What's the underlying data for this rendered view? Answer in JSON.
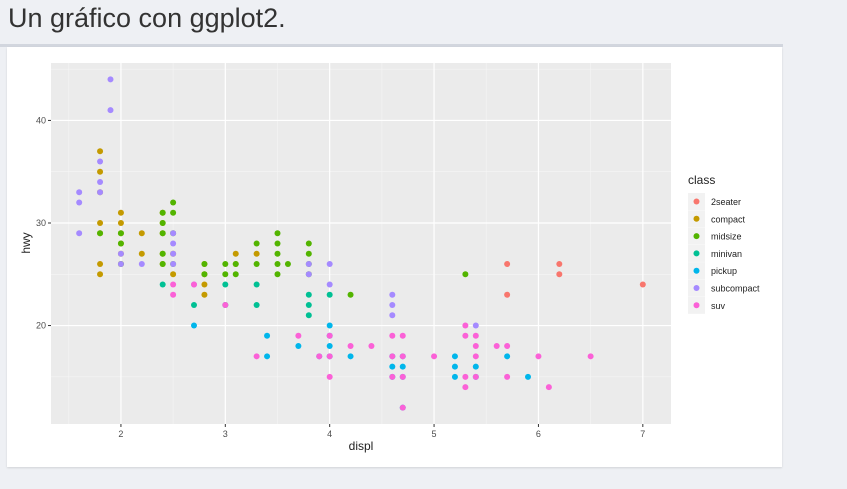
{
  "page": {
    "title": "Un gráfico con ggplot2."
  },
  "chart_data": {
    "type": "scatter",
    "title": "",
    "xlabel": "displ",
    "ylabel": "hwy",
    "xlim": [
      1.33,
      7.27
    ],
    "ylim": [
      10.4,
      45.6
    ],
    "x_ticks": [
      2,
      3,
      4,
      5,
      6,
      7
    ],
    "y_ticks": [
      20,
      30,
      40
    ],
    "grid": true,
    "legend_placement": "right",
    "legend_title": "class",
    "series": [
      {
        "name": "2seater",
        "color": "#F8766D",
        "points": [
          [
            5.7,
            26
          ],
          [
            5.7,
            23
          ],
          [
            6.2,
            26
          ],
          [
            6.2,
            25
          ],
          [
            7.0,
            24
          ]
        ]
      },
      {
        "name": "compact",
        "color": "#C49A00",
        "points": [
          [
            1.8,
            37
          ],
          [
            1.8,
            35
          ],
          [
            1.8,
            33
          ],
          [
            1.8,
            30
          ],
          [
            1.8,
            29
          ],
          [
            1.8,
            26
          ],
          [
            1.8,
            25
          ],
          [
            2.0,
            31
          ],
          [
            2.0,
            30
          ],
          [
            2.0,
            29
          ],
          [
            2.0,
            28
          ],
          [
            2.0,
            27
          ],
          [
            2.0,
            26
          ],
          [
            2.2,
            29
          ],
          [
            2.2,
            27
          ],
          [
            2.4,
            31
          ],
          [
            2.4,
            30
          ],
          [
            2.4,
            29
          ],
          [
            2.4,
            27
          ],
          [
            2.4,
            26
          ],
          [
            2.5,
            27
          ],
          [
            2.5,
            25
          ],
          [
            2.8,
            26
          ],
          [
            2.8,
            25
          ],
          [
            2.8,
            24
          ],
          [
            2.8,
            23
          ],
          [
            3.1,
            27
          ],
          [
            3.1,
            26
          ],
          [
            3.3,
            27
          ]
        ]
      },
      {
        "name": "midsize",
        "color": "#53B400",
        "points": [
          [
            1.8,
            29
          ],
          [
            2.0,
            29
          ],
          [
            2.0,
            28
          ],
          [
            2.0,
            26
          ],
          [
            2.4,
            31
          ],
          [
            2.4,
            30
          ],
          [
            2.4,
            29
          ],
          [
            2.4,
            27
          ],
          [
            2.4,
            26
          ],
          [
            2.5,
            32
          ],
          [
            2.5,
            31
          ],
          [
            2.5,
            29
          ],
          [
            2.5,
            26
          ],
          [
            2.8,
            26
          ],
          [
            2.8,
            25
          ],
          [
            3.0,
            26
          ],
          [
            3.0,
            25
          ],
          [
            3.1,
            26
          ],
          [
            3.1,
            25
          ],
          [
            3.3,
            28
          ],
          [
            3.3,
            26
          ],
          [
            3.5,
            29
          ],
          [
            3.5,
            28
          ],
          [
            3.5,
            27
          ],
          [
            3.5,
            26
          ],
          [
            3.5,
            25
          ],
          [
            3.6,
            26
          ],
          [
            3.8,
            28
          ],
          [
            3.8,
            27
          ],
          [
            3.8,
            26
          ],
          [
            3.8,
            25
          ],
          [
            4.2,
            23
          ],
          [
            5.3,
            25
          ]
        ]
      },
      {
        "name": "minivan",
        "color": "#00C094",
        "points": [
          [
            2.4,
            24
          ],
          [
            2.7,
            22
          ],
          [
            3.0,
            24
          ],
          [
            3.0,
            22
          ],
          [
            3.3,
            24
          ],
          [
            3.3,
            22
          ],
          [
            3.8,
            23
          ],
          [
            3.8,
            22
          ],
          [
            3.8,
            21
          ],
          [
            4.0,
            23
          ]
        ]
      },
      {
        "name": "pickup",
        "color": "#00B6EB",
        "points": [
          [
            2.7,
            20
          ],
          [
            3.4,
            19
          ],
          [
            3.4,
            17
          ],
          [
            3.7,
            18
          ],
          [
            3.9,
            17
          ],
          [
            4.0,
            20
          ],
          [
            4.0,
            19
          ],
          [
            4.0,
            18
          ],
          [
            4.0,
            17
          ],
          [
            4.2,
            17
          ],
          [
            4.6,
            17
          ],
          [
            4.6,
            16
          ],
          [
            4.6,
            15
          ],
          [
            4.7,
            17
          ],
          [
            4.7,
            16
          ],
          [
            4.7,
            15
          ],
          [
            4.7,
            12
          ],
          [
            5.2,
            17
          ],
          [
            5.2,
            16
          ],
          [
            5.2,
            15
          ],
          [
            5.4,
            16
          ],
          [
            5.4,
            15
          ],
          [
            5.7,
            17
          ],
          [
            5.9,
            15
          ]
        ]
      },
      {
        "name": "subcompact",
        "color": "#A58AFF",
        "points": [
          [
            1.6,
            33
          ],
          [
            1.6,
            32
          ],
          [
            1.6,
            29
          ],
          [
            1.8,
            36
          ],
          [
            1.8,
            34
          ],
          [
            1.8,
            33
          ],
          [
            1.9,
            44
          ],
          [
            1.9,
            41
          ],
          [
            2.0,
            27
          ],
          [
            2.0,
            26
          ],
          [
            2.2,
            26
          ],
          [
            2.5,
            29
          ],
          [
            2.5,
            28
          ],
          [
            2.5,
            27
          ],
          [
            2.5,
            26
          ],
          [
            2.7,
            24
          ],
          [
            3.8,
            26
          ],
          [
            3.8,
            25
          ],
          [
            4.0,
            26
          ],
          [
            4.0,
            24
          ],
          [
            4.6,
            23
          ],
          [
            4.6,
            22
          ],
          [
            4.6,
            21
          ],
          [
            5.4,
            20
          ]
        ]
      },
      {
        "name": "suv",
        "color": "#FB61D7",
        "points": [
          [
            2.5,
            24
          ],
          [
            2.5,
            23
          ],
          [
            2.7,
            24
          ],
          [
            3.0,
            22
          ],
          [
            3.3,
            17
          ],
          [
            3.7,
            19
          ],
          [
            3.9,
            17
          ],
          [
            4.0,
            19
          ],
          [
            4.0,
            17
          ],
          [
            4.0,
            15
          ],
          [
            4.2,
            18
          ],
          [
            4.4,
            18
          ],
          [
            4.6,
            19
          ],
          [
            4.6,
            17
          ],
          [
            4.6,
            15
          ],
          [
            4.7,
            19
          ],
          [
            4.7,
            17
          ],
          [
            4.7,
            15
          ],
          [
            4.7,
            12
          ],
          [
            5.0,
            17
          ],
          [
            5.3,
            20
          ],
          [
            5.3,
            19
          ],
          [
            5.3,
            15
          ],
          [
            5.3,
            14
          ],
          [
            5.4,
            19
          ],
          [
            5.4,
            18
          ],
          [
            5.4,
            17
          ],
          [
            5.4,
            15
          ],
          [
            5.6,
            18
          ],
          [
            5.7,
            18
          ],
          [
            5.7,
            15
          ],
          [
            6.0,
            17
          ],
          [
            6.1,
            14
          ],
          [
            6.5,
            17
          ]
        ]
      }
    ]
  }
}
